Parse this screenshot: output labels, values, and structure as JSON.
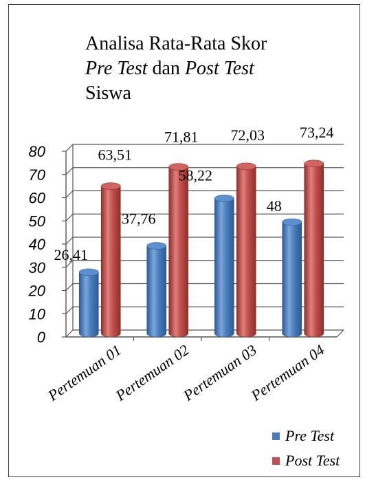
{
  "title": {
    "line1": "Analisa Rata-Rata Skor",
    "line2a": "Pre Test",
    "line2b": " dan ",
    "line2c": "Post Test",
    "line3": "Siswa"
  },
  "chart_data": {
    "type": "bar",
    "title": "Analisa Rata-Rata Skor Pre Test dan Post Test Siswa",
    "categories": [
      "Pertemuan 01",
      "Pertemuan 02",
      "Pertemuan 03",
      "Pertemuan 04"
    ],
    "series": [
      {
        "name": "Pre Test",
        "values": [
          26.41,
          37.76,
          58.22,
          48
        ],
        "labels": [
          "26,41",
          "37,76",
          "58,22",
          "48"
        ],
        "color": "#4a7ebb"
      },
      {
        "name": "Post Test",
        "values": [
          63.51,
          71.81,
          72.03,
          73.24
        ],
        "labels": [
          "63,51",
          "71,81",
          "72,03",
          "73,24"
        ],
        "color": "#c0504d"
      }
    ],
    "yticks": [
      "0",
      "10",
      "20",
      "30",
      "40",
      "50",
      "60",
      "70",
      "80"
    ],
    "ylim": [
      0,
      80
    ],
    "grid": true,
    "legend_position": "bottom-right",
    "style": "3d-cylinder"
  }
}
